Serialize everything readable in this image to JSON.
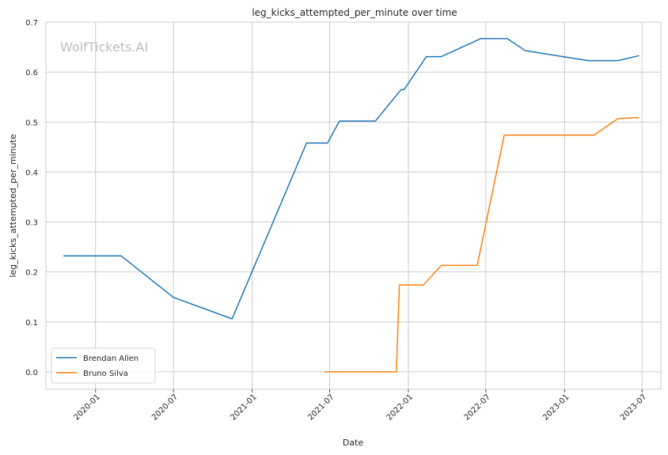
{
  "chart_data": {
    "type": "line",
    "title": "leg_kicks_attempted_per_minute over time",
    "xlabel": "Date",
    "ylabel": "leg_kicks_attempted_per_minute",
    "watermark": "WolfTickets.AI",
    "x_ticks": [
      "2020-01",
      "2020-07",
      "2021-01",
      "2021-07",
      "2022-01",
      "2022-07",
      "2023-01",
      "2023-07"
    ],
    "y_ticks": [
      "0.0",
      "0.1",
      "0.2",
      "0.3",
      "0.4",
      "0.5",
      "0.6",
      "0.7"
    ],
    "xlim": [
      "2019-09-07",
      "2023-08-14"
    ],
    "ylim": [
      -0.035,
      0.7
    ],
    "grid": true,
    "legend_position": "lower-left",
    "series": [
      {
        "name": "Brendan Allen",
        "color": "#1f77b4",
        "points": [
          {
            "x": "2019-10-18",
            "y": 0.232
          },
          {
            "x": "2020-03-01",
            "y": 0.232
          },
          {
            "x": "2020-07-01",
            "y": 0.149
          },
          {
            "x": "2020-11-15",
            "y": 0.106
          },
          {
            "x": "2021-05-08",
            "y": 0.458
          },
          {
            "x": "2021-06-26",
            "y": 0.458
          },
          {
            "x": "2021-07-24",
            "y": 0.502
          },
          {
            "x": "2021-10-16",
            "y": 0.502
          },
          {
            "x": "2021-12-15",
            "y": 0.565
          },
          {
            "x": "2021-12-22",
            "y": 0.565
          },
          {
            "x": "2022-02-12",
            "y": 0.631
          },
          {
            "x": "2022-03-19",
            "y": 0.631
          },
          {
            "x": "2022-06-19",
            "y": 0.667
          },
          {
            "x": "2022-08-20",
            "y": 0.667
          },
          {
            "x": "2022-10-01",
            "y": 0.643
          },
          {
            "x": "2023-02-25",
            "y": 0.623
          },
          {
            "x": "2023-05-06",
            "y": 0.623
          },
          {
            "x": "2023-06-24",
            "y": 0.633
          }
        ]
      },
      {
        "name": "Bruno Silva",
        "color": "#ff7f0e",
        "points": [
          {
            "x": "2021-06-19",
            "y": 0.0
          },
          {
            "x": "2021-12-04",
            "y": 0.0
          },
          {
            "x": "2021-12-11",
            "y": 0.174
          },
          {
            "x": "2022-02-05",
            "y": 0.174
          },
          {
            "x": "2022-03-19",
            "y": 0.213
          },
          {
            "x": "2022-06-11",
            "y": 0.213
          },
          {
            "x": "2022-08-13",
            "y": 0.474
          },
          {
            "x": "2023-03-11",
            "y": 0.474
          },
          {
            "x": "2023-05-06",
            "y": 0.507
          },
          {
            "x": "2023-06-24",
            "y": 0.509
          }
        ]
      }
    ]
  }
}
